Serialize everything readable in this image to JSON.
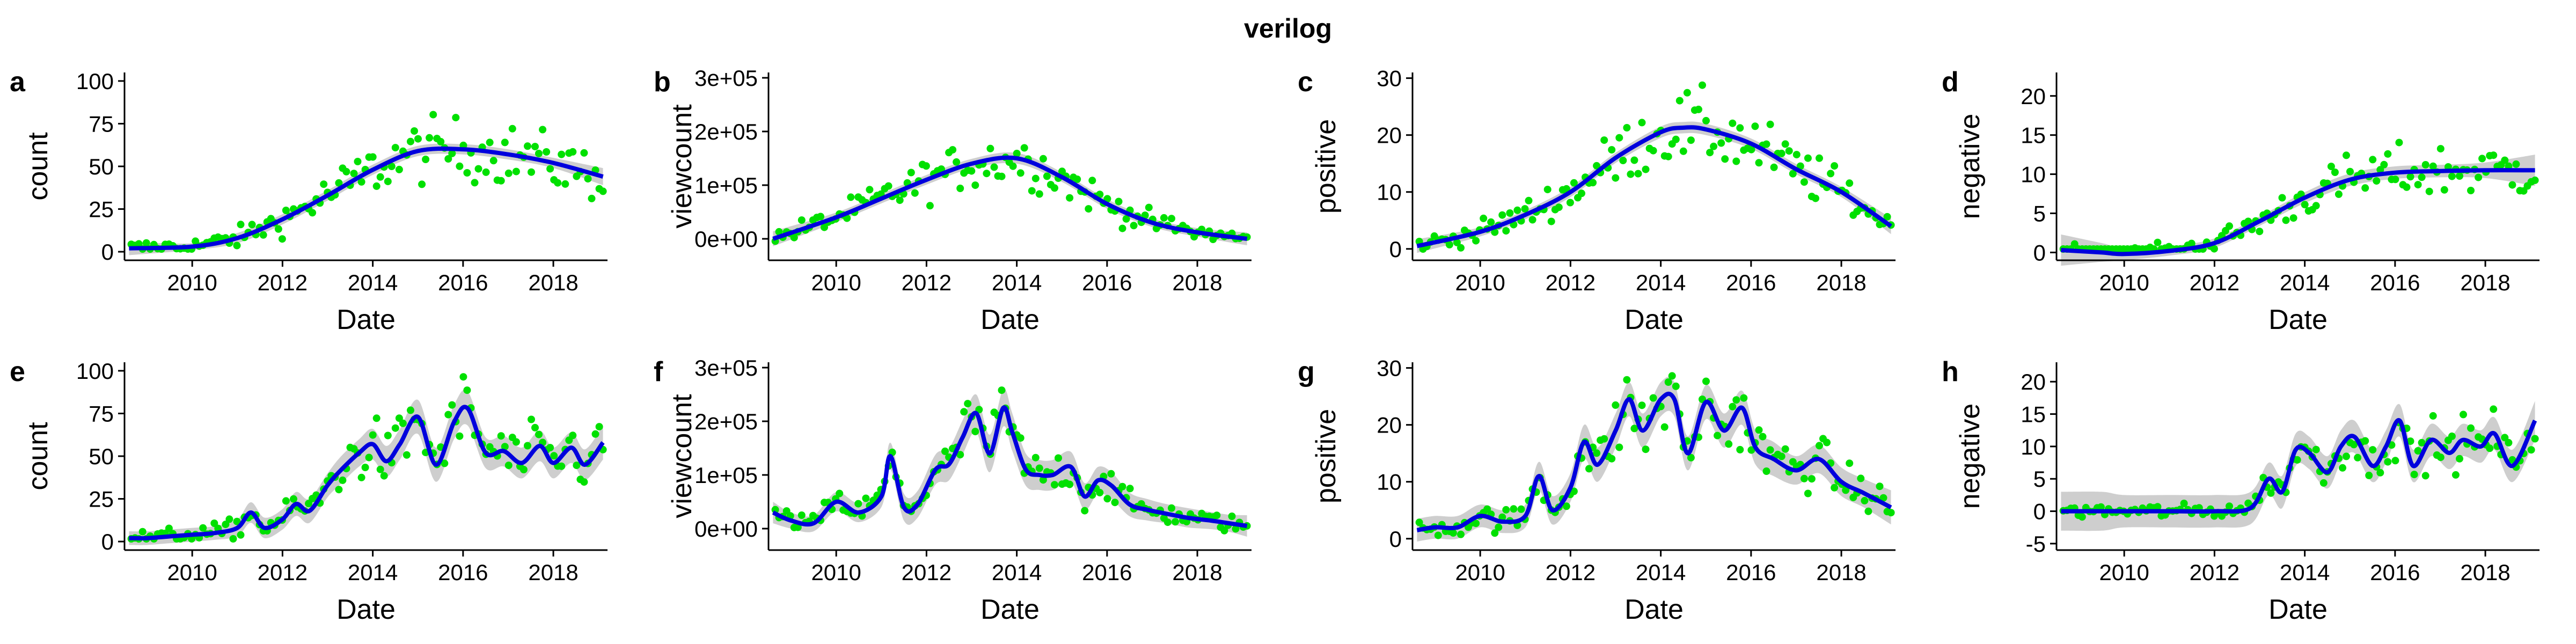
{
  "chart_data": {
    "title": "verilog",
    "colors": {
      "points": "#00e000",
      "smooth": "#0000dd",
      "band": "#bdbdbd",
      "axis": "#000000"
    },
    "panels": [
      {
        "tag": "a",
        "type": "scatter",
        "xlabel": "Date",
        "ylabel": "count",
        "xlim": [
          2008.5,
          2019.2
        ],
        "ylim": [
          -5,
          105
        ],
        "xticks": [
          {
            "v": 2010,
            "t": "2010"
          },
          {
            "v": 2012,
            "t": "2012"
          },
          {
            "v": 2014,
            "t": "2014"
          },
          {
            "v": 2016,
            "t": "2016"
          },
          {
            "v": 2018,
            "t": "2018"
          }
        ],
        "yticks": [
          {
            "v": 0,
            "t": "0"
          },
          {
            "v": 25,
            "t": "25"
          },
          {
            "v": 50,
            "t": "50"
          },
          {
            "v": 75,
            "t": "75"
          },
          {
            "v": 100,
            "t": "100"
          }
        ],
        "smooth": {
          "x": [
            2008.6,
            2010,
            2011,
            2012,
            2013,
            2014,
            2015,
            2016,
            2017,
            2018,
            2019.1
          ],
          "y": [
            2,
            3,
            8,
            19,
            33,
            48,
            59,
            60,
            57,
            52,
            44
          ]
        },
        "band": [
          4,
          2,
          3,
          3,
          3,
          3,
          3,
          3,
          3,
          3,
          5
        ]
      },
      {
        "tag": "b",
        "type": "scatter",
        "xlabel": "Date",
        "ylabel": "viewcount",
        "xlim": [
          2008.5,
          2019.2
        ],
        "ylim": [
          -40000,
          310000
        ],
        "xticks": [
          {
            "v": 2010,
            "t": "2010"
          },
          {
            "v": 2012,
            "t": "2012"
          },
          {
            "v": 2014,
            "t": "2014"
          },
          {
            "v": 2016,
            "t": "2016"
          },
          {
            "v": 2018,
            "t": "2018"
          }
        ],
        "yticks": [
          {
            "v": 0,
            "t": "0e+00"
          },
          {
            "v": 100000,
            "t": "1e+05"
          },
          {
            "v": 200000,
            "t": "2e+05"
          },
          {
            "v": 300000,
            "t": "3e+05"
          }
        ],
        "smooth": {
          "x": [
            2008.6,
            2010,
            2011,
            2012,
            2013,
            2014,
            2015,
            2016,
            2017,
            2018,
            2019.1
          ],
          "y": [
            0,
            40000,
            75000,
            110000,
            140000,
            150000,
            115000,
            65000,
            30000,
            12000,
            0
          ]
        },
        "band": [
          14000,
          9000,
          9000,
          9000,
          9000,
          10000,
          9000,
          9000,
          8000,
          8000,
          12000
        ]
      },
      {
        "tag": "c",
        "type": "scatter",
        "xlabel": "Date",
        "ylabel": "positive",
        "xlim": [
          2008.5,
          2019.2
        ],
        "ylim": [
          -2,
          31
        ],
        "xticks": [
          {
            "v": 2010,
            "t": "2010"
          },
          {
            "v": 2012,
            "t": "2012"
          },
          {
            "v": 2014,
            "t": "2014"
          },
          {
            "v": 2016,
            "t": "2016"
          },
          {
            "v": 2018,
            "t": "2018"
          }
        ],
        "yticks": [
          {
            "v": 0,
            "t": "0"
          },
          {
            "v": 10,
            "t": "10"
          },
          {
            "v": 20,
            "t": "20"
          },
          {
            "v": 30,
            "t": "30"
          }
        ],
        "smooth": {
          "x": [
            2008.6,
            2010,
            2011,
            2012,
            2013,
            2014,
            2014.5,
            2015,
            2016,
            2017,
            2018,
            2019.1
          ],
          "y": [
            0.5,
            3,
            6,
            10,
            16,
            20.5,
            21.3,
            21,
            18.5,
            14,
            10,
            4
          ]
        },
        "band": [
          1.2,
          0.8,
          0.8,
          0.9,
          0.9,
          1,
          1,
          1,
          0.9,
          0.9,
          0.9,
          1.4
        ]
      },
      {
        "tag": "d",
        "type": "scatter",
        "xlabel": "Date",
        "ylabel": "negative",
        "xlim": [
          2008.5,
          2019.2
        ],
        "ylim": [
          -1,
          23
        ],
        "xticks": [
          {
            "v": 2010,
            "t": "2010"
          },
          {
            "v": 2012,
            "t": "2012"
          },
          {
            "v": 2014,
            "t": "2014"
          },
          {
            "v": 2016,
            "t": "2016"
          },
          {
            "v": 2018,
            "t": "2018"
          }
        ],
        "yticks": [
          {
            "v": 0,
            "t": "0"
          },
          {
            "v": 5,
            "t": "5"
          },
          {
            "v": 10,
            "t": "10"
          },
          {
            "v": 15,
            "t": "15"
          },
          {
            "v": 20,
            "t": "20"
          }
        ],
        "smooth": {
          "x": [
            2008.6,
            2009.5,
            2010,
            2011,
            2012,
            2013,
            2014,
            2015,
            2016,
            2017,
            2018,
            2019.1
          ],
          "y": [
            0.3,
            0,
            -0.2,
            0.2,
            1.2,
            4,
            7,
            9.3,
            10.2,
            10.4,
            10.5,
            10.5
          ]
        },
        "band": [
          2,
          1.2,
          0.8,
          0.6,
          0.6,
          0.6,
          0.7,
          0.8,
          0.8,
          0.8,
          1,
          2
        ]
      },
      {
        "tag": "e",
        "type": "scatter",
        "xlabel": "Date",
        "ylabel": "count",
        "xlim": [
          2008.5,
          2019.2
        ],
        "ylim": [
          -5,
          105
        ],
        "xticks": [
          {
            "v": 2010,
            "t": "2010"
          },
          {
            "v": 2012,
            "t": "2012"
          },
          {
            "v": 2014,
            "t": "2014"
          },
          {
            "v": 2016,
            "t": "2016"
          },
          {
            "v": 2018,
            "t": "2018"
          }
        ],
        "yticks": [
          {
            "v": 0,
            "t": "0"
          },
          {
            "v": 25,
            "t": "25"
          },
          {
            "v": 50,
            "t": "50"
          },
          {
            "v": 75,
            "t": "75"
          },
          {
            "v": 100,
            "t": "100"
          }
        ],
        "smooth": {
          "x": [
            2008.6,
            2009,
            2009.5,
            2010,
            2010.5,
            2011,
            2011.3,
            2011.6,
            2012,
            2012.3,
            2012.6,
            2013,
            2013.3,
            2013.7,
            2014,
            2014.3,
            2014.6,
            2015,
            2015.4,
            2015.8,
            2016.1,
            2016.5,
            2016.9,
            2017.3,
            2017.7,
            2018,
            2018.4,
            2018.7,
            2019.1
          ],
          "y": [
            2,
            2,
            3,
            4,
            5,
            8,
            17,
            8,
            13,
            22,
            18,
            33,
            42,
            52,
            57,
            47,
            57,
            73,
            45,
            70,
            78,
            52,
            53,
            46,
            56,
            46,
            55,
            45,
            58
          ]
        },
        "band": [
          4,
          4,
          4,
          4,
          4,
          5,
          6,
          6,
          6,
          7,
          7,
          7,
          8,
          8,
          9,
          9,
          9,
          10,
          10,
          10,
          10,
          9,
          9,
          9,
          9,
          9,
          9,
          9,
          10
        ]
      },
      {
        "tag": "f",
        "type": "scatter",
        "xlabel": "Date",
        "ylabel": "viewcount",
        "xlim": [
          2008.5,
          2019.2
        ],
        "ylim": [
          -40000,
          310000
        ],
        "xticks": [
          {
            "v": 2010,
            "t": "2010"
          },
          {
            "v": 2012,
            "t": "2012"
          },
          {
            "v": 2014,
            "t": "2014"
          },
          {
            "v": 2016,
            "t": "2016"
          },
          {
            "v": 2018,
            "t": "2018"
          }
        ],
        "yticks": [
          {
            "v": 0,
            "t": "0e+00"
          },
          {
            "v": 100000,
            "t": "1e+05"
          },
          {
            "v": 200000,
            "t": "2e+05"
          },
          {
            "v": 300000,
            "t": "3e+05"
          }
        ],
        "smooth": {
          "x": [
            2008.6,
            2009,
            2009.5,
            2010,
            2010.5,
            2011,
            2011.2,
            2011.5,
            2011.8,
            2012.2,
            2012.5,
            2012.8,
            2013.1,
            2013.4,
            2013.7,
            2013.9,
            2014.2,
            2014.5,
            2014.8,
            2015.2,
            2015.5,
            2015.8,
            2016.1,
            2016.5,
            2016.9,
            2017.3,
            2017.8,
            2018.3,
            2018.7,
            2019.1
          ],
          "y": [
            30000,
            15000,
            10000,
            50000,
            30000,
            60000,
            135000,
            40000,
            45000,
            110000,
            120000,
            170000,
            215000,
            140000,
            225000,
            180000,
            110000,
            100000,
            100000,
            115000,
            60000,
            90000,
            80000,
            45000,
            35000,
            28000,
            20000,
            15000,
            10000,
            5000
          ]
        },
        "band": [
          20000,
          15000,
          15000,
          18000,
          18000,
          20000,
          25000,
          25000,
          25000,
          28000,
          30000,
          32000,
          35000,
          35000,
          35000,
          35000,
          30000,
          28000,
          28000,
          28000,
          25000,
          25000,
          25000,
          22000,
          20000,
          18000,
          18000,
          16000,
          16000,
          20000
        ]
      },
      {
        "tag": "g",
        "type": "scatter",
        "xlabel": "Date",
        "ylabel": "positive",
        "xlim": [
          2008.5,
          2019.2
        ],
        "ylim": [
          -2,
          31
        ],
        "xticks": [
          {
            "v": 2010,
            "t": "2010"
          },
          {
            "v": 2012,
            "t": "2012"
          },
          {
            "v": 2014,
            "t": "2014"
          },
          {
            "v": 2016,
            "t": "2016"
          },
          {
            "v": 2018,
            "t": "2018"
          }
        ],
        "yticks": [
          {
            "v": 0,
            "t": "0"
          },
          {
            "v": 10,
            "t": "10"
          },
          {
            "v": 20,
            "t": "20"
          },
          {
            "v": 30,
            "t": "30"
          }
        ],
        "smooth": {
          "x": [
            2008.6,
            2009,
            2009.5,
            2010,
            2010.5,
            2011,
            2011.3,
            2011.6,
            2012,
            2012.3,
            2012.6,
            2013,
            2013.3,
            2013.6,
            2014,
            2014.3,
            2014.6,
            2015,
            2015.4,
            2015.8,
            2016.1,
            2016.5,
            2017,
            2017.5,
            2018,
            2018.5,
            2019.1
          ],
          "y": [
            1.5,
            2,
            2,
            4,
            3,
            4,
            11,
            5,
            9,
            17,
            13,
            19,
            24.5,
            19,
            24.5,
            24.5,
            15,
            24,
            19,
            23,
            16,
            14,
            12,
            14,
            10,
            8,
            5.5
          ]
        },
        "band": [
          2,
          2,
          2,
          2,
          2,
          2,
          2.5,
          2.5,
          2.5,
          3,
          3,
          3,
          3,
          3,
          3,
          3,
          3,
          3,
          3,
          3,
          3,
          3,
          2.5,
          2.5,
          2.5,
          2.5,
          3
        ]
      },
      {
        "tag": "h",
        "type": "scatter",
        "xlabel": "Date",
        "ylabel": "negative",
        "xlim": [
          2008.5,
          2019.2
        ],
        "ylim": [
          -6,
          23
        ],
        "xticks": [
          {
            "v": 2010,
            "t": "2010"
          },
          {
            "v": 2012,
            "t": "2012"
          },
          {
            "v": 2014,
            "t": "2014"
          },
          {
            "v": 2016,
            "t": "2016"
          },
          {
            "v": 2018,
            "t": "2018"
          }
        ],
        "yticks": [
          {
            "v": -5,
            "t": "-5"
          },
          {
            "v": 0,
            "t": "0"
          },
          {
            "v": 5,
            "t": "5"
          },
          {
            "v": 10,
            "t": "10"
          },
          {
            "v": 15,
            "t": "15"
          },
          {
            "v": 20,
            "t": "20"
          }
        ],
        "smooth": {
          "x": [
            2008.6,
            2009.5,
            2010,
            2011,
            2012,
            2012.8,
            2013.2,
            2013.5,
            2013.8,
            2014.1,
            2014.5,
            2014.8,
            2015.1,
            2015.5,
            2015.8,
            2016.1,
            2016.4,
            2016.8,
            2017.2,
            2017.5,
            2017.9,
            2018.2,
            2018.6,
            2019.1
          ],
          "y": [
            0,
            0,
            0,
            0,
            0,
            0.5,
            5,
            3,
            9.5,
            9,
            6,
            10,
            11.5,
            7,
            10,
            14,
            7,
            11,
            9,
            11,
            10,
            12,
            7,
            14
          ]
        },
        "band": [
          3,
          3,
          2.5,
          2.5,
          2.5,
          2.5,
          2.5,
          2.5,
          2.5,
          2.5,
          2.5,
          2.5,
          2.5,
          2.5,
          2.5,
          2.5,
          2.5,
          2.5,
          2.5,
          2.5,
          2.5,
          2.5,
          2.5,
          3
        ]
      }
    ]
  }
}
